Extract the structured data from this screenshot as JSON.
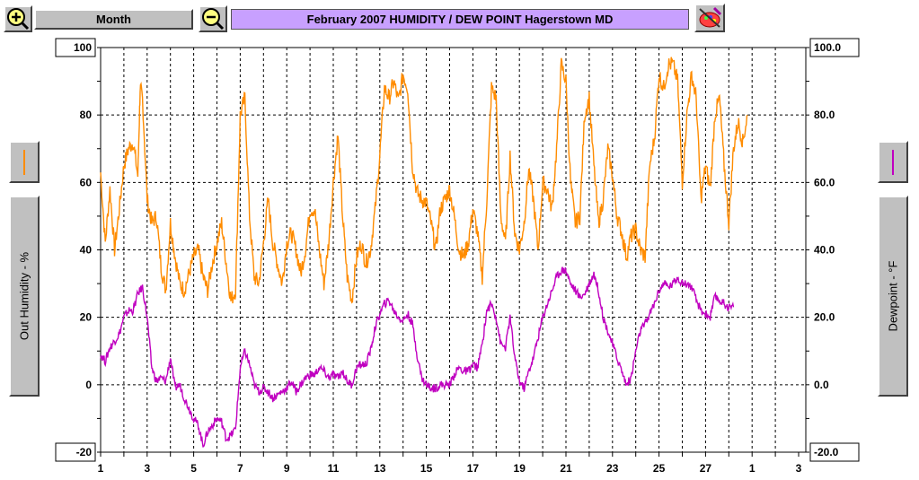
{
  "toolbar": {
    "period_label": "Month",
    "title": "February 2007  HUMIDITY / DEW POINT  Hagerstown MD",
    "zoom_in_icon": "zoom-in-magnifier-icon",
    "zoom_out_icon": "zoom-out-magnifier-icon",
    "paint_icon": "paint-palette-icon"
  },
  "left_axis": {
    "label": "Out Humidity - %",
    "color": "#ff8c00"
  },
  "right_axis": {
    "label": "Dewpoint - °F",
    "color": "#c000c0"
  },
  "chart_data": {
    "type": "line",
    "x_ticks": [
      "1",
      "3",
      "5",
      "7",
      "9",
      "11",
      "13",
      "15",
      "17",
      "19",
      "21",
      "23",
      "25",
      "27",
      "1",
      "3"
    ],
    "x_range": [
      1,
      31
    ],
    "left_ylim": [
      -20,
      100
    ],
    "left_ticks": [
      "100",
      "80",
      "60",
      "40",
      "20",
      "0",
      "-20"
    ],
    "right_ylim": [
      -20,
      100
    ],
    "right_ticks": [
      "100.0",
      "80.0",
      "60.0",
      "40.0",
      "20.0",
      "0.0",
      "-20.0"
    ],
    "grid": true,
    "series": [
      {
        "name": "Out Humidity - %",
        "axis": "left",
        "color": "#ff8c00",
        "points": [
          [
            1,
            63
          ],
          [
            1.2,
            42
          ],
          [
            1.4,
            58
          ],
          [
            1.6,
            40
          ],
          [
            1.8,
            52
          ],
          [
            2,
            65
          ],
          [
            2.2,
            70
          ],
          [
            2.4,
            72
          ],
          [
            2.6,
            62
          ],
          [
            2.7,
            88
          ],
          [
            2.8,
            85
          ],
          [
            3,
            55
          ],
          [
            3.2,
            48
          ],
          [
            3.4,
            50
          ],
          [
            3.6,
            35
          ],
          [
            3.8,
            28
          ],
          [
            4,
            48
          ],
          [
            4.2,
            38
          ],
          [
            4.4,
            30
          ],
          [
            4.6,
            28
          ],
          [
            4.8,
            33
          ],
          [
            5,
            38
          ],
          [
            5.2,
            40
          ],
          [
            5.4,
            32
          ],
          [
            5.6,
            28
          ],
          [
            5.8,
            36
          ],
          [
            6,
            42
          ],
          [
            6.2,
            48
          ],
          [
            6.4,
            36
          ],
          [
            6.6,
            25
          ],
          [
            6.8,
            28
          ],
          [
            7,
            80
          ],
          [
            7.2,
            85
          ],
          [
            7.4,
            50
          ],
          [
            7.6,
            32
          ],
          [
            7.8,
            30
          ],
          [
            8,
            42
          ],
          [
            8.2,
            55
          ],
          [
            8.4,
            42
          ],
          [
            8.6,
            36
          ],
          [
            8.8,
            30
          ],
          [
            9,
            42
          ],
          [
            9.2,
            45
          ],
          [
            9.4,
            40
          ],
          [
            9.6,
            33
          ],
          [
            9.8,
            40
          ],
          [
            10,
            52
          ],
          [
            10.2,
            52
          ],
          [
            10.4,
            40
          ],
          [
            10.6,
            30
          ],
          [
            10.8,
            42
          ],
          [
            11,
            60
          ],
          [
            11.2,
            74
          ],
          [
            11.4,
            50
          ],
          [
            11.6,
            32
          ],
          [
            11.8,
            25
          ],
          [
            12,
            38
          ],
          [
            12.2,
            42
          ],
          [
            12.4,
            36
          ],
          [
            12.6,
            40
          ],
          [
            12.8,
            52
          ],
          [
            13,
            68
          ],
          [
            13.2,
            88
          ],
          [
            13.4,
            85
          ],
          [
            13.6,
            90
          ],
          [
            13.8,
            84
          ],
          [
            14,
            92
          ],
          [
            14.2,
            88
          ],
          [
            14.4,
            65
          ],
          [
            14.6,
            57
          ],
          [
            14.8,
            55
          ],
          [
            15,
            54
          ],
          [
            15.2,
            48
          ],
          [
            15.4,
            40
          ],
          [
            15.6,
            52
          ],
          [
            15.8,
            55
          ],
          [
            16,
            58
          ],
          [
            16.2,
            50
          ],
          [
            16.4,
            40
          ],
          [
            16.6,
            38
          ],
          [
            16.8,
            42
          ],
          [
            17,
            52
          ],
          [
            17.2,
            45
          ],
          [
            17.4,
            32
          ],
          [
            17.6,
            55
          ],
          [
            17.8,
            88
          ],
          [
            18,
            85
          ],
          [
            18.2,
            50
          ],
          [
            18.4,
            42
          ],
          [
            18.6,
            68
          ],
          [
            18.8,
            45
          ],
          [
            19,
            40
          ],
          [
            19.2,
            48
          ],
          [
            19.4,
            64
          ],
          [
            19.6,
            55
          ],
          [
            19.8,
            40
          ],
          [
            20,
            60
          ],
          [
            20.2,
            58
          ],
          [
            20.4,
            52
          ],
          [
            20.6,
            70
          ],
          [
            20.8,
            95
          ],
          [
            21,
            90
          ],
          [
            21.2,
            60
          ],
          [
            21.4,
            48
          ],
          [
            21.6,
            50
          ],
          [
            21.8,
            80
          ],
          [
            22,
            85
          ],
          [
            22.2,
            65
          ],
          [
            22.4,
            48
          ],
          [
            22.6,
            55
          ],
          [
            22.8,
            70
          ],
          [
            23,
            62
          ],
          [
            23.2,
            50
          ],
          [
            23.4,
            45
          ],
          [
            23.6,
            38
          ],
          [
            23.8,
            44
          ],
          [
            24,
            46
          ],
          [
            24.2,
            40
          ],
          [
            24.4,
            38
          ],
          [
            24.6,
            65
          ],
          [
            24.8,
            73
          ],
          [
            25,
            92
          ],
          [
            25.2,
            88
          ],
          [
            25.4,
            95
          ],
          [
            25.6,
            95
          ],
          [
            25.8,
            90
          ],
          [
            26,
            60
          ],
          [
            26.2,
            80
          ],
          [
            26.4,
            92
          ],
          [
            26.6,
            85
          ],
          [
            26.8,
            55
          ],
          [
            27,
            65
          ],
          [
            27.2,
            58
          ],
          [
            27.4,
            80
          ],
          [
            27.6,
            85
          ],
          [
            27.8,
            65
          ],
          [
            28,
            48
          ],
          [
            28.2,
            70
          ],
          [
            28.4,
            78
          ],
          [
            28.6,
            72
          ],
          [
            28.8,
            80
          ]
        ]
      },
      {
        "name": "Dewpoint - °F",
        "axis": "right",
        "color": "#c000c0",
        "points": [
          [
            1,
            9
          ],
          [
            1.2,
            7
          ],
          [
            1.4,
            11
          ],
          [
            1.6,
            13
          ],
          [
            1.8,
            15
          ],
          [
            2,
            20
          ],
          [
            2.2,
            22
          ],
          [
            2.4,
            22
          ],
          [
            2.6,
            27
          ],
          [
            2.8,
            29
          ],
          [
            3,
            20
          ],
          [
            3.2,
            5
          ],
          [
            3.4,
            1
          ],
          [
            3.6,
            2
          ],
          [
            3.8,
            1
          ],
          [
            4,
            8
          ],
          [
            4.2,
            -1
          ],
          [
            4.4,
            0
          ],
          [
            4.6,
            -4
          ],
          [
            4.8,
            -7
          ],
          [
            5,
            -10
          ],
          [
            5.2,
            -12
          ],
          [
            5.4,
            -18
          ],
          [
            5.6,
            -14
          ],
          [
            5.8,
            -12
          ],
          [
            6,
            -10
          ],
          [
            6.2,
            -11
          ],
          [
            6.4,
            -16
          ],
          [
            6.6,
            -15
          ],
          [
            6.8,
            -13
          ],
          [
            7,
            5
          ],
          [
            7.2,
            10
          ],
          [
            7.4,
            6
          ],
          [
            7.6,
            0
          ],
          [
            7.8,
            -2
          ],
          [
            8,
            -1
          ],
          [
            8.2,
            -2
          ],
          [
            8.4,
            -4
          ],
          [
            8.6,
            -3
          ],
          [
            8.8,
            -2
          ],
          [
            9,
            -1
          ],
          [
            9.2,
            1
          ],
          [
            9.4,
            -2
          ],
          [
            9.6,
            0
          ],
          [
            9.8,
            2
          ],
          [
            10,
            3
          ],
          [
            10.2,
            3
          ],
          [
            10.4,
            5
          ],
          [
            10.6,
            4
          ],
          [
            10.8,
            2
          ],
          [
            11,
            3
          ],
          [
            11.2,
            2
          ],
          [
            11.4,
            4
          ],
          [
            11.6,
            1
          ],
          [
            11.8,
            0
          ],
          [
            12,
            5
          ],
          [
            12.2,
            6
          ],
          [
            12.4,
            6
          ],
          [
            12.6,
            10
          ],
          [
            12.8,
            17
          ],
          [
            13,
            21
          ],
          [
            13.2,
            24
          ],
          [
            13.4,
            25
          ],
          [
            13.6,
            22
          ],
          [
            13.8,
            20
          ],
          [
            14,
            19
          ],
          [
            14.2,
            21
          ],
          [
            14.4,
            18
          ],
          [
            14.6,
            9
          ],
          [
            14.8,
            2
          ],
          [
            15,
            0
          ],
          [
            15.2,
            -1
          ],
          [
            15.4,
            -1
          ],
          [
            15.6,
            0
          ],
          [
            15.8,
            0
          ],
          [
            16,
            0
          ],
          [
            16.2,
            3
          ],
          [
            16.4,
            5
          ],
          [
            16.6,
            4
          ],
          [
            16.8,
            4
          ],
          [
            17,
            6
          ],
          [
            17.2,
            5
          ],
          [
            17.4,
            12
          ],
          [
            17.6,
            22
          ],
          [
            17.8,
            24
          ],
          [
            18,
            20
          ],
          [
            18.2,
            12
          ],
          [
            18.4,
            11
          ],
          [
            18.6,
            20
          ],
          [
            18.8,
            8
          ],
          [
            19,
            1
          ],
          [
            19.2,
            -1
          ],
          [
            19.4,
            4
          ],
          [
            19.6,
            8
          ],
          [
            19.8,
            14
          ],
          [
            20,
            20
          ],
          [
            20.2,
            24
          ],
          [
            20.4,
            28
          ],
          [
            20.6,
            32
          ],
          [
            20.8,
            34
          ],
          [
            21,
            34
          ],
          [
            21.2,
            30
          ],
          [
            21.4,
            28
          ],
          [
            21.6,
            26
          ],
          [
            21.8,
            27
          ],
          [
            22,
            30
          ],
          [
            22.2,
            33
          ],
          [
            22.4,
            28
          ],
          [
            22.6,
            20
          ],
          [
            22.8,
            16
          ],
          [
            23,
            12
          ],
          [
            23.2,
            8
          ],
          [
            23.4,
            4
          ],
          [
            23.6,
            0
          ],
          [
            23.8,
            2
          ],
          [
            24,
            10
          ],
          [
            24.2,
            16
          ],
          [
            24.4,
            18
          ],
          [
            24.6,
            21
          ],
          [
            24.8,
            24
          ],
          [
            25,
            28
          ],
          [
            25.2,
            30
          ],
          [
            25.4,
            29
          ],
          [
            25.6,
            30
          ],
          [
            25.8,
            32
          ],
          [
            26,
            30
          ],
          [
            26.2,
            30
          ],
          [
            26.4,
            29
          ],
          [
            26.6,
            25
          ],
          [
            26.8,
            22
          ],
          [
            27,
            21
          ],
          [
            27.2,
            20
          ],
          [
            27.4,
            26
          ],
          [
            27.6,
            25
          ],
          [
            27.8,
            24
          ],
          [
            28,
            23
          ],
          [
            28.2,
            23
          ]
        ]
      }
    ]
  }
}
